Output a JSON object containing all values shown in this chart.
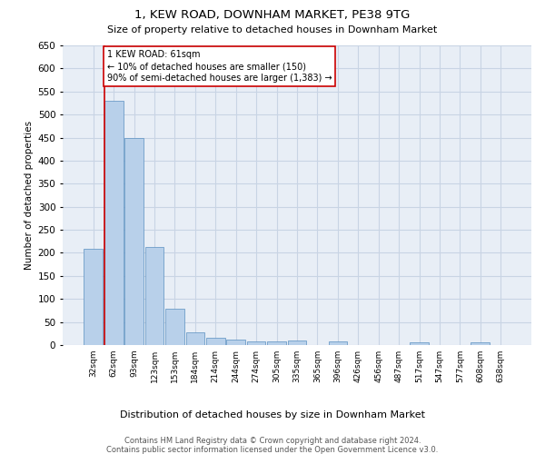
{
  "title": "1, KEW ROAD, DOWNHAM MARKET, PE38 9TG",
  "subtitle": "Size of property relative to detached houses in Downham Market",
  "xlabel": "Distribution of detached houses by size in Downham Market",
  "ylabel": "Number of detached properties",
  "footer_line1": "Contains HM Land Registry data © Crown copyright and database right 2024.",
  "footer_line2": "Contains public sector information licensed under the Open Government Licence v3.0.",
  "categories": [
    "32sqm",
    "62sqm",
    "93sqm",
    "123sqm",
    "153sqm",
    "184sqm",
    "214sqm",
    "244sqm",
    "274sqm",
    "305sqm",
    "335sqm",
    "365sqm",
    "396sqm",
    "426sqm",
    "456sqm",
    "487sqm",
    "517sqm",
    "547sqm",
    "577sqm",
    "608sqm",
    "638sqm"
  ],
  "values": [
    208,
    530,
    450,
    212,
    78,
    27,
    15,
    12,
    8,
    8,
    10,
    0,
    7,
    0,
    0,
    0,
    6,
    0,
    0,
    6,
    0
  ],
  "bar_color": "#b8d0ea",
  "bar_edge_color": "#5a8fc0",
  "grid_color": "#c8d4e4",
  "bg_color": "#e8eef6",
  "annotation_text": "1 KEW ROAD: 61sqm\n← 10% of detached houses are smaller (150)\n90% of semi-detached houses are larger (1,383) →",
  "marker_color": "#cc0000",
  "ylim": [
    0,
    650
  ],
  "yticks": [
    0,
    50,
    100,
    150,
    200,
    250,
    300,
    350,
    400,
    450,
    500,
    550,
    600,
    650
  ]
}
